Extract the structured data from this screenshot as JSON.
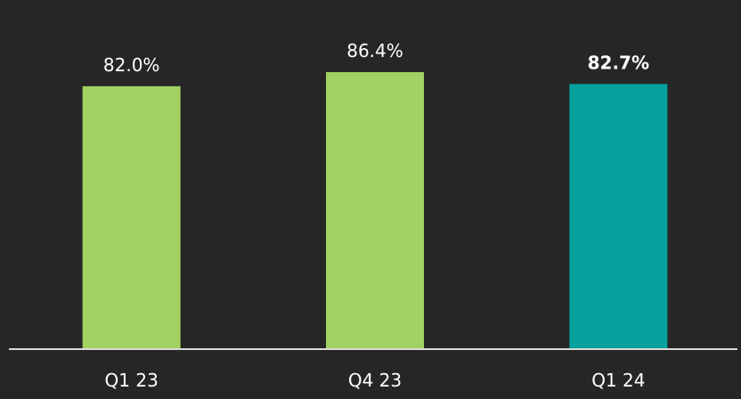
{
  "chart_data": {
    "type": "bar",
    "categories": [
      "Q1 23",
      "Q4 23",
      "Q1 24"
    ],
    "values": [
      82.0,
      86.4,
      82.7
    ],
    "data_labels": [
      "82.0%",
      "86.4%",
      "82.7%"
    ],
    "highlight_index": 2,
    "unit": "%",
    "title": "",
    "xlabel": "",
    "ylabel": "",
    "ylim": [
      0,
      100
    ],
    "grid": false,
    "legend": "none",
    "colors": {
      "background": "#262626",
      "bar": "#a2d164",
      "highlight_bar": "#05a19e",
      "text": "#ffffff",
      "axis": "#d9d9d9"
    }
  }
}
